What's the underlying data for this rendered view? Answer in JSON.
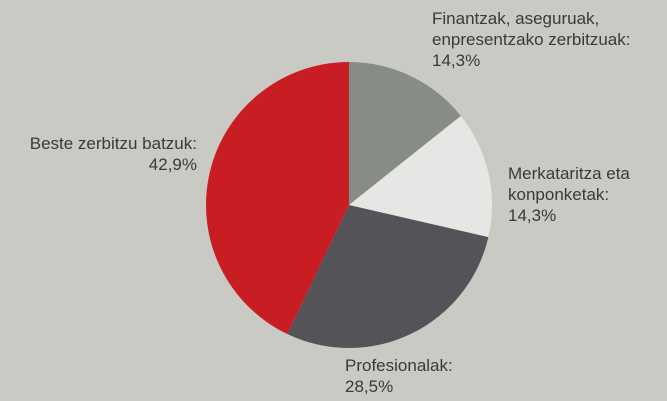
{
  "chart_data": {
    "type": "pie",
    "categories": [
      "Finantzak, aseguruak, enpresentzako zerbitzuak:",
      "Merkataritza eta konponketak:",
      "Profesionalak:",
      "Beste zerbitzu batzuk:"
    ],
    "values": [
      14.3,
      14.3,
      28.5,
      42.9
    ],
    "value_labels": [
      "14,3%",
      "14,3%",
      "28,5%",
      "42,9%"
    ],
    "colors": [
      "#878c84",
      "#e6e6e4",
      "#545358",
      "#c91d24"
    ]
  }
}
